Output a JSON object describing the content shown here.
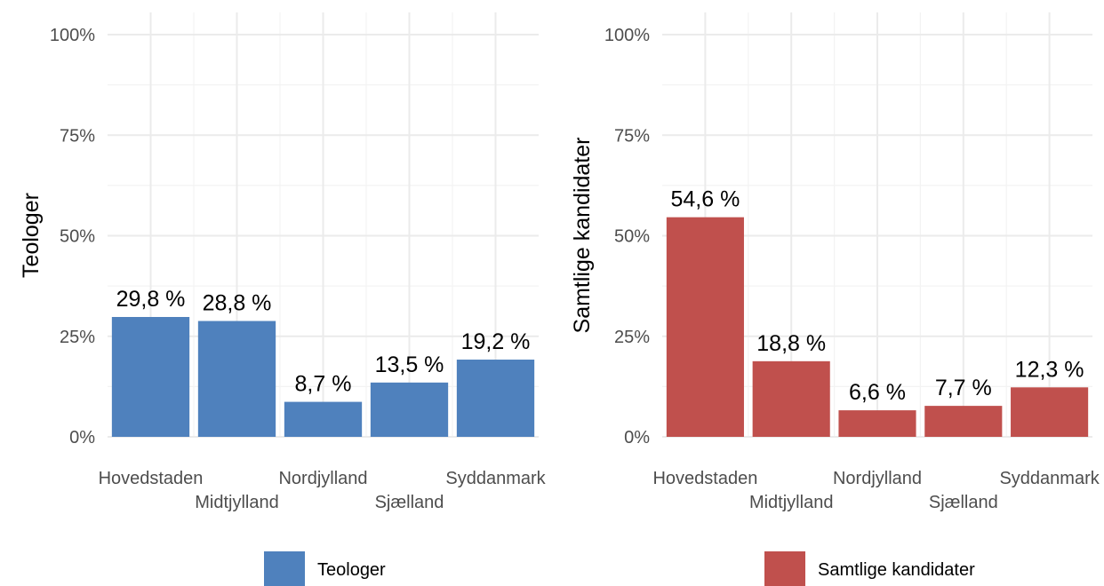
{
  "chart_data": [
    {
      "type": "bar",
      "ylabel": "Teologer",
      "xlabel": "",
      "categories": [
        "Hovedstaden",
        "Midtjylland",
        "Nordjylland",
        "Sjælland",
        "Syddanmark"
      ],
      "series": [
        {
          "name": "Teologer",
          "values": [
            29.8,
            28.8,
            8.7,
            13.5,
            19.2
          ]
        }
      ],
      "data_labels": [
        "29,8 %",
        "28,8 %",
        "8,7 %",
        "13,5 %",
        "19,2 %"
      ],
      "yticks": [
        "0%",
        "25%",
        "50%",
        "75%",
        "100%"
      ],
      "ylim": [
        0,
        100
      ],
      "color": "#4f81bd",
      "legend": {
        "label": "Teologer",
        "position": "bottom"
      },
      "grid": true
    },
    {
      "type": "bar",
      "ylabel": "Samtlige kandidater",
      "xlabel": "",
      "categories": [
        "Hovedstaden",
        "Midtjylland",
        "Nordjylland",
        "Sjælland",
        "Syddanmark"
      ],
      "series": [
        {
          "name": "Samtlige kandidater",
          "values": [
            54.6,
            18.8,
            6.6,
            7.7,
            12.3
          ]
        }
      ],
      "data_labels": [
        "54,6 %",
        "18,8 %",
        "6,6 %",
        "7,7 %",
        "12,3 %"
      ],
      "yticks": [
        "0%",
        "25%",
        "50%",
        "75%",
        "100%"
      ],
      "ylim": [
        0,
        100
      ],
      "color": "#c0504d",
      "legend": {
        "label": "Samtlige kandidater",
        "position": "bottom"
      },
      "grid": true
    }
  ]
}
